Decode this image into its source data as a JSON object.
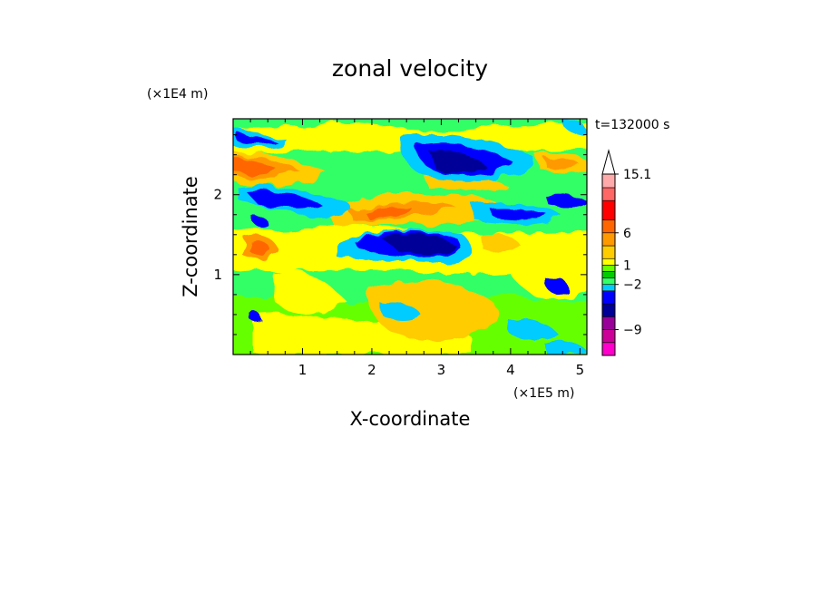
{
  "chart_data": {
    "type": "heatmap",
    "title": "zonal velocity",
    "xlabel": "X-coordinate",
    "ylabel": "Z-coordinate",
    "x_unit": "(×1E5 m)",
    "y_unit": "(×1E4 m)",
    "time_label": "t=132000 s",
    "xlim": [
      0,
      5.1
    ],
    "ylim": [
      0,
      2.95
    ],
    "xticks": [
      "1",
      "2",
      "3",
      "4",
      "5"
    ],
    "yticks": [
      "1",
      "2"
    ],
    "colorbar": {
      "levels": [
        -13,
        -11,
        -9,
        -7,
        -5,
        -3,
        -2,
        -1,
        0,
        1,
        2,
        4,
        6,
        8,
        11,
        13,
        15.1
      ],
      "colors": [
        "#ff00cc",
        "#cc0099",
        "#990099",
        "#000099",
        "#0000ff",
        "#00ccff",
        "#33ff66",
        "#00cc00",
        "#66ff00",
        "#ffff00",
        "#ffcc00",
        "#ff9900",
        "#ff6600",
        "#ff0000",
        "#ff6666",
        "#ffaaaa"
      ],
      "tick_labels": [
        "15.1",
        "6",
        "1",
        "−2",
        "−9"
      ],
      "extend": "max"
    },
    "field_features": [
      {
        "x": 3.2,
        "z": 2.45,
        "value": -12
      },
      {
        "x": 2.6,
        "z": 1.4,
        "value": -12
      },
      {
        "x": 1.0,
        "z": 1.9,
        "value": -7
      },
      {
        "x": 0.3,
        "z": 2.35,
        "value": 9
      },
      {
        "x": 0.5,
        "z": 1.35,
        "value": 9
      },
      {
        "x": 2.1,
        "z": 1.85,
        "value": 8
      },
      {
        "x": 2.7,
        "z": 0.5,
        "value": 3
      },
      {
        "x": 4.6,
        "z": 2.2,
        "value": 6
      },
      {
        "x": 4.8,
        "z": 2.0,
        "value": -4
      },
      {
        "x": 0.3,
        "z": 2.75,
        "value": -5
      }
    ]
  }
}
